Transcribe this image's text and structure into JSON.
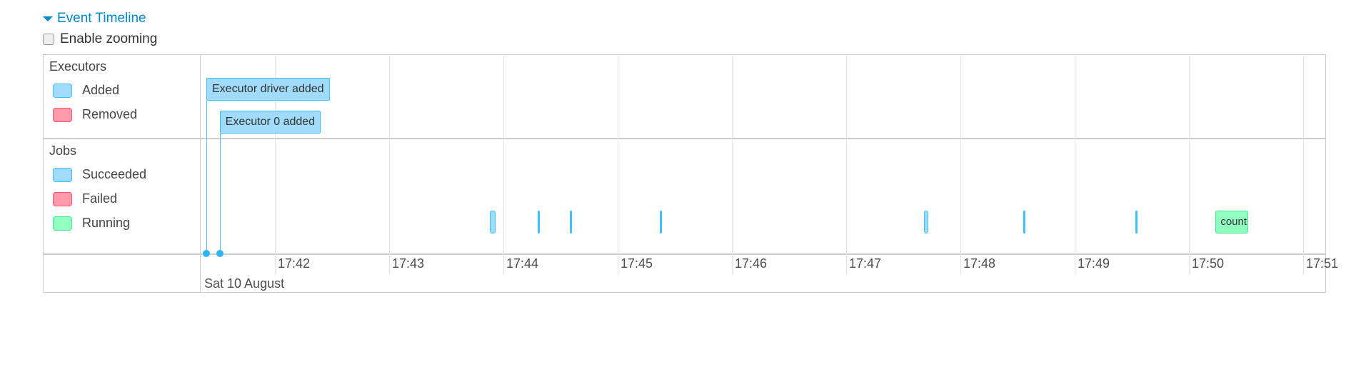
{
  "header": {
    "title": "Event Timeline",
    "title_icon": "caret-down-icon",
    "zoom_label": "Enable zooming",
    "zoom_checked": false
  },
  "colors": {
    "succeeded_fill": "#a0dcfa",
    "succeeded_border": "#3ec1fa",
    "failed_fill": "#ff98aa",
    "failed_border": "#ff5577",
    "running_fill": "#91ffc0",
    "running_border": "#3eec90",
    "grid": "#e5e5e5",
    "accent": "#0088cc"
  },
  "legend": {
    "executors": {
      "title": "Executors",
      "items": [
        {
          "label": "Added",
          "status": "succeeded"
        },
        {
          "label": "Removed",
          "status": "failed"
        }
      ]
    },
    "jobs": {
      "title": "Jobs",
      "items": [
        {
          "label": "Succeeded",
          "status": "succeeded"
        },
        {
          "label": "Failed",
          "status": "failed"
        },
        {
          "label": "Running",
          "status": "running"
        }
      ]
    }
  },
  "axis": {
    "visible_start": "17:41:21",
    "visible_end": "17:51:12",
    "ticks": [
      "17:42",
      "17:43",
      "17:44",
      "17:45",
      "17:46",
      "17:47",
      "17:48",
      "17:49",
      "17:50",
      "17:51"
    ],
    "date_label": "Sat 10 August"
  },
  "executor_events": [
    {
      "label": "Executor driver added",
      "time": "17:41:24",
      "status": "succeeded"
    },
    {
      "label": "Executor 0 added",
      "time": "17:41:31",
      "status": "succeeded"
    }
  ],
  "jobs": [
    {
      "start": "17:43:53",
      "end": "17:43:56",
      "status": "succeeded",
      "label": ""
    },
    {
      "start": "17:44:18",
      "end": "17:44:18",
      "status": "succeeded",
      "label": ""
    },
    {
      "start": "17:44:35",
      "end": "17:44:35",
      "status": "succeeded",
      "label": ""
    },
    {
      "start": "17:45:22",
      "end": "17:45:22",
      "status": "succeeded",
      "label": ""
    },
    {
      "start": "17:47:41",
      "end": "17:47:43",
      "status": "succeeded",
      "label": ""
    },
    {
      "start": "17:48:33",
      "end": "17:48:33",
      "status": "succeeded",
      "label": ""
    },
    {
      "start": "17:49:32",
      "end": "17:49:32",
      "status": "succeeded",
      "label": ""
    },
    {
      "start": "17:50:14",
      "end": "17:50:31",
      "status": "running",
      "label": "count"
    }
  ]
}
